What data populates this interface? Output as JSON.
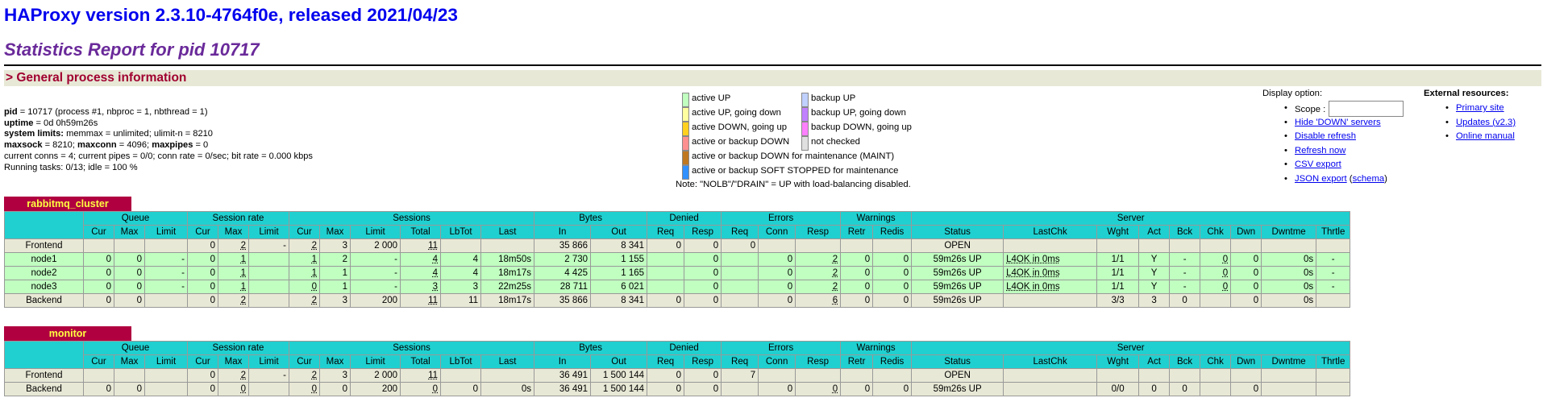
{
  "header": {
    "title": "HAProxy version 2.3.10-4764f0e, released 2021/04/23",
    "subtitle": "Statistics Report for pid 10717",
    "section": "> General process information"
  },
  "process": {
    "l1_k": "pid",
    "l1_v": " = 10717 (process #1, nbproc = 1, nbthread = 1)",
    "l2_k": "uptime",
    "l2_v": " = 0d 0h59m26s",
    "l3_k": "system limits:",
    "l3_v": " memmax = unlimited; ulimit-n = 8210",
    "l4_k1": "maxsock",
    "l4_v1": " = 8210; ",
    "l4_k2": "maxconn",
    "l4_v2": " = 4096; ",
    "l4_k3": "maxpipes",
    "l4_v3": " = 0",
    "l5": "current conns = 4; current pipes = 0/0; conn rate = 0/sec; bit rate = 0.000 kbps",
    "l6": "Running tasks: 0/13; idle = 100 %"
  },
  "legend": {
    "active_up": "active UP",
    "active_up_going_down": "active UP, going down",
    "active_down_going_up": "active DOWN, going up",
    "active_or_backup_down": "active or backup DOWN",
    "maint": "active or backup DOWN for maintenance (MAINT)",
    "soft_stopped": "active or backup SOFT STOPPED for maintenance",
    "backup_up": "backup UP",
    "backup_up_going_down": "backup UP, going down",
    "backup_down_going_up": "backup DOWN, going up",
    "not_checked": "not checked",
    "note": "Note: \"NOLB\"/\"DRAIN\" = UP with load-balancing disabled."
  },
  "colors": {
    "active_up": "#c0ffc0",
    "active_up_going_down": "#ffffa0",
    "active_down_going_up": "#ffd020",
    "active_or_backup_down": "#ff9090",
    "maint": "#c07820",
    "soft_stopped": "#3090ff",
    "backup_up": "#c0d0ff",
    "backup_up_going_down": "#c080ff",
    "backup_down_going_up": "#ff80ff",
    "not_checked": "#e0e0e0",
    "frontend_row": "#e8e8d6",
    "header_cell": "#20d0d0",
    "proxy_tab": "#b00040"
  },
  "display_options": {
    "heading": "Display option:",
    "scope_label": "Scope :",
    "scope_value": "",
    "hide_down": "Hide 'DOWN' servers",
    "disable_refresh": "Disable refresh",
    "refresh_now": "Refresh now",
    "csv_export": "CSV export",
    "json_export": "JSON export",
    "schema_open": " (",
    "schema": "schema",
    "schema_close": ")"
  },
  "external": {
    "heading": "External resources:",
    "primary_site": "Primary site",
    "updates": "Updates (v2.3)",
    "online_manual": "Online manual"
  },
  "columns": {
    "groups": [
      "Queue",
      "Session rate",
      "Sessions",
      "Bytes",
      "Denied",
      "Errors",
      "Warnings",
      "Server"
    ],
    "cols": [
      "Cur",
      "Max",
      "Limit",
      "Cur",
      "Max",
      "Limit",
      "Cur",
      "Max",
      "Limit",
      "Total",
      "LbTot",
      "Last",
      "In",
      "Out",
      "Req",
      "Resp",
      "Req",
      "Conn",
      "Resp",
      "Retr",
      "Redis",
      "Status",
      "LastChk",
      "Wght",
      "Act",
      "Bck",
      "Chk",
      "Dwn",
      "Dwntme",
      "Thrtle"
    ]
  },
  "proxies": [
    {
      "name": "rabbitmq_cluster",
      "rows": [
        {
          "kind": "fe",
          "cells": [
            "Frontend",
            "",
            "",
            "",
            "0",
            "2",
            "-",
            "2",
            "3",
            "2 000",
            "11",
            "",
            "",
            "35 866",
            "8 341",
            "0",
            "0",
            "0",
            "",
            "",
            "",
            "",
            "OPEN",
            "",
            "",
            "",
            "",
            "",
            "",
            "",
            ""
          ]
        },
        {
          "kind": "up",
          "cells": [
            "node1",
            "0",
            "0",
            "-",
            "0",
            "1",
            "",
            "1",
            "2",
            "-",
            "4",
            "4",
            "18m50s",
            "2 730",
            "1 155",
            "",
            "0",
            "",
            "0",
            "2",
            "0",
            "0",
            "59m26s UP",
            "L4OK in 0ms",
            "1/1",
            "Y",
            "-",
            "0",
            "0",
            "0s",
            "-"
          ]
        },
        {
          "kind": "up",
          "cells": [
            "node2",
            "0",
            "0",
            "-",
            "0",
            "1",
            "",
            "1",
            "1",
            "-",
            "4",
            "4",
            "18m17s",
            "4 425",
            "1 165",
            "",
            "0",
            "",
            "0",
            "2",
            "0",
            "0",
            "59m26s UP",
            "L4OK in 0ms",
            "1/1",
            "Y",
            "-",
            "0",
            "0",
            "0s",
            "-"
          ]
        },
        {
          "kind": "up",
          "cells": [
            "node3",
            "0",
            "0",
            "-",
            "0",
            "1",
            "",
            "0",
            "1",
            "-",
            "3",
            "3",
            "22m25s",
            "28 711",
            "6 021",
            "",
            "0",
            "",
            "0",
            "2",
            "0",
            "0",
            "59m26s UP",
            "L4OK in 0ms",
            "1/1",
            "Y",
            "-",
            "0",
            "0",
            "0s",
            "-"
          ]
        },
        {
          "kind": "be",
          "cells": [
            "Backend",
            "0",
            "0",
            "",
            "0",
            "2",
            "",
            "2",
            "3",
            "200",
            "11",
            "11",
            "18m17s",
            "35 866",
            "8 341",
            "0",
            "0",
            "",
            "0",
            "6",
            "0",
            "0",
            "59m26s UP",
            "",
            "3/3",
            "3",
            "0",
            "",
            "0",
            "0s",
            ""
          ]
        }
      ]
    },
    {
      "name": "monitor",
      "rows": [
        {
          "kind": "fe",
          "cells": [
            "Frontend",
            "",
            "",
            "",
            "0",
            "2",
            "-",
            "2",
            "3",
            "2 000",
            "11",
            "",
            "",
            "36 491",
            "1 500 144",
            "0",
            "0",
            "7",
            "",
            "",
            "",
            "",
            "OPEN",
            "",
            "",
            "",
            "",
            "",
            "",
            "",
            ""
          ]
        },
        {
          "kind": "be",
          "cells": [
            "Backend",
            "0",
            "0",
            "",
            "0",
            "0",
            "",
            "0",
            "0",
            "200",
            "0",
            "0",
            "0s",
            "36 491",
            "1 500 144",
            "0",
            "0",
            "",
            "0",
            "0",
            "0",
            "0",
            "59m26s UP",
            "",
            "0/0",
            "0",
            "0",
            "",
            "0",
            "",
            ""
          ]
        }
      ]
    }
  ]
}
